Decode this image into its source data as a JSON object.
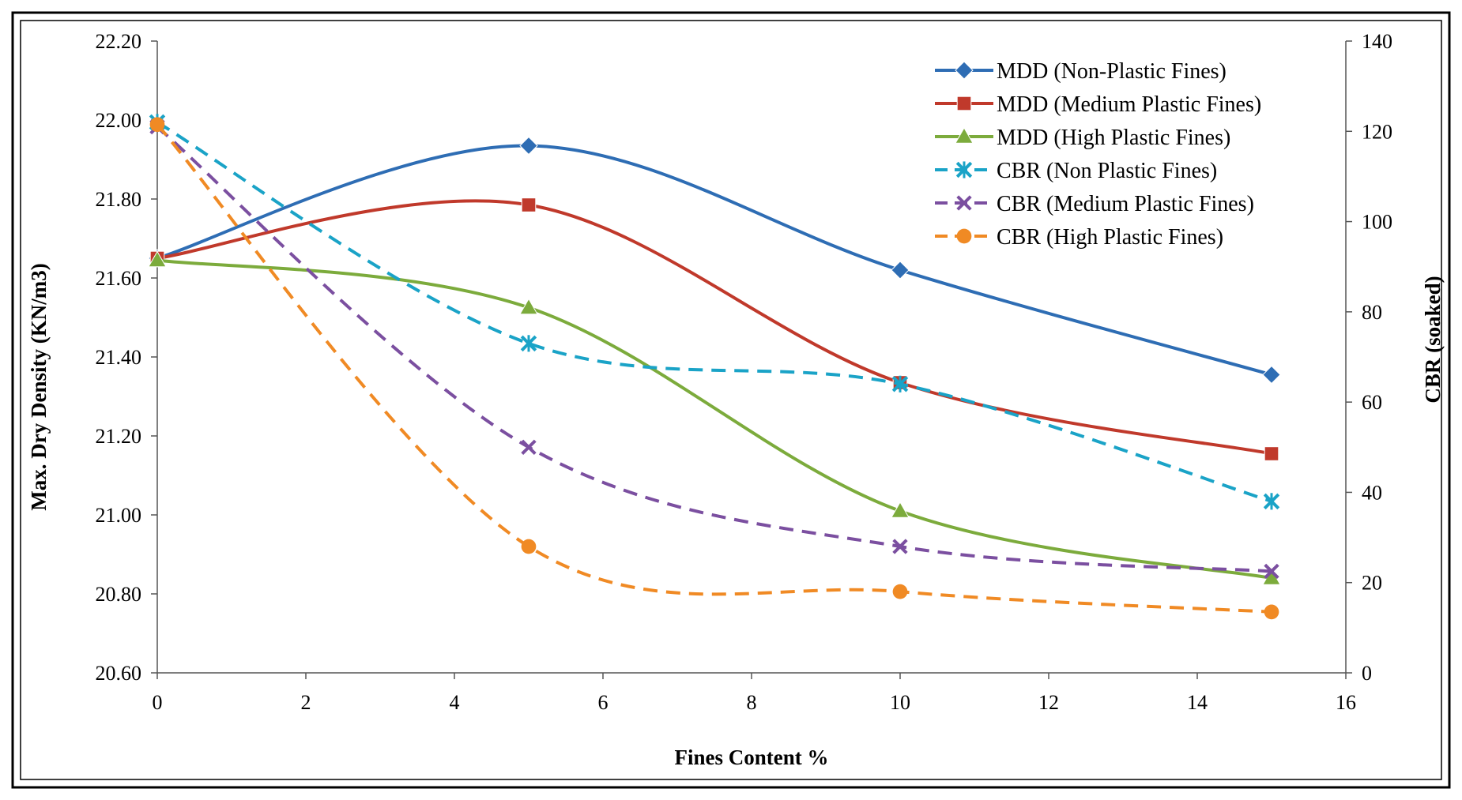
{
  "chart_data": {
    "type": "line",
    "title": "",
    "xlabel": "Fines Content %",
    "ylabel": "Max. Dry Density (KN/m3)",
    "y2label": "CBR  (soaked)",
    "xlim": [
      0,
      16
    ],
    "ylim": [
      20.6,
      22.2
    ],
    "y2lim": [
      0,
      140
    ],
    "x_ticks": [
      0,
      2,
      4,
      6,
      8,
      10,
      12,
      14,
      16
    ],
    "y_ticks": [
      "20.60",
      "20.80",
      "21.00",
      "21.20",
      "21.40",
      "21.60",
      "21.80",
      "22.00",
      "22.20"
    ],
    "y2_ticks": [
      0,
      20,
      40,
      60,
      80,
      100,
      120,
      140
    ],
    "grid": false,
    "legend_position": "top-right",
    "series": [
      {
        "name": "MDD (Non-Plastic Fines)",
        "axis": "left",
        "marker": "diamond",
        "dash": "solid",
        "color": "#2e6db4",
        "x": [
          0,
          5,
          10,
          15
        ],
        "values": [
          21.65,
          21.935,
          21.62,
          21.355
        ]
      },
      {
        "name": "MDD (Medium Plastic Fines)",
        "axis": "left",
        "marker": "square",
        "dash": "solid",
        "color": "#c0392b",
        "x": [
          0,
          5,
          10,
          15
        ],
        "values": [
          21.65,
          21.785,
          21.335,
          21.155
        ]
      },
      {
        "name": "MDD (High Plastic Fines)",
        "axis": "left",
        "marker": "triangle",
        "dash": "solid",
        "color": "#7cab3c",
        "x": [
          0,
          5,
          10,
          15
        ],
        "values": [
          21.645,
          21.525,
          21.01,
          20.84
        ]
      },
      {
        "name": "CBR (Non Plastic Fines)",
        "axis": "right",
        "marker": "star",
        "dash": "dashed",
        "color": "#1aa3c7",
        "x": [
          0,
          5,
          10,
          15
        ],
        "values": [
          122,
          73,
          64,
          38
        ]
      },
      {
        "name": "CBR (Medium Plastic Fines)",
        "axis": "right",
        "marker": "x",
        "dash": "dashed",
        "color": "#7b4fa0",
        "x": [
          0,
          5,
          10,
          15
        ],
        "values": [
          121,
          50,
          28,
          22.5
        ]
      },
      {
        "name": "CBR (High Plastic Fines)",
        "axis": "right",
        "marker": "circle",
        "dash": "dashed",
        "color": "#f08a24",
        "x": [
          0,
          5,
          10,
          15
        ],
        "values": [
          121.5,
          28,
          18,
          13.5
        ]
      }
    ]
  }
}
